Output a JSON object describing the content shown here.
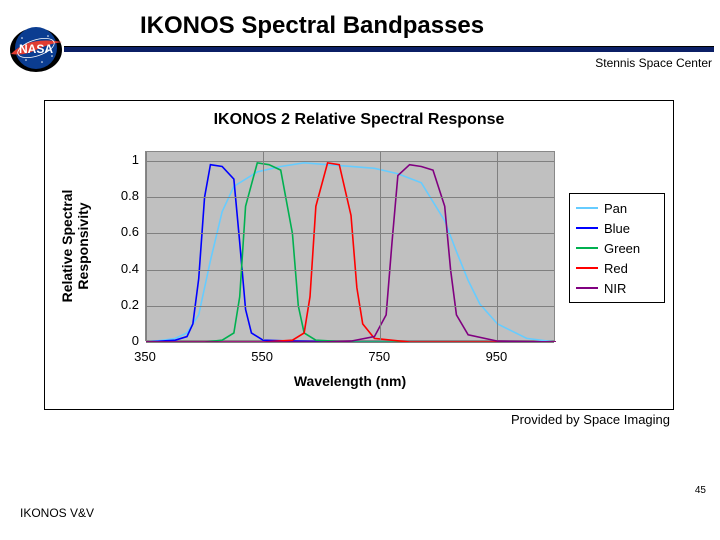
{
  "header": {
    "title": "IKONOS Spectral Bandpasses",
    "subtitle": "Stennis Space Center"
  },
  "logo": {
    "bg_shadow": "#000000",
    "circle_fill": "#0b3d91",
    "red": "#e03c31",
    "white": "#ffffff",
    "text": "NASA"
  },
  "chart": {
    "type": "line",
    "title": "IKONOS 2 Relative Spectral Response",
    "title_fontsize": 16,
    "background_color": "#ffffff",
    "plot_bg": "#c0c0c0",
    "grid_color": "#808080",
    "border_color": "#000000",
    "xlabel": "Wavelength (nm)",
    "ylabel": "Relative Spectral\nResponsivity",
    "label_fontsize": 14,
    "tick_fontsize": 13,
    "xlim": [
      350,
      1050
    ],
    "ylim": [
      0,
      1.05
    ],
    "xticks": [
      350,
      550,
      750,
      950
    ],
    "yticks": [
      0,
      0.2,
      0.4,
      0.6,
      0.8,
      1
    ],
    "line_width": 1.6,
    "legend": {
      "position": "right",
      "items": [
        {
          "label": "Pan",
          "color": "#66ccff"
        },
        {
          "label": "Blue",
          "color": "#0000ff"
        },
        {
          "label": "Green",
          "color": "#00b050"
        },
        {
          "label": "Red",
          "color": "#ff0000"
        },
        {
          "label": "NIR",
          "color": "#800080"
        }
      ]
    },
    "series": {
      "Pan": {
        "color": "#66ccff",
        "x": [
          350,
          380,
          400,
          420,
          440,
          460,
          480,
          500,
          540,
          580,
          620,
          660,
          700,
          740,
          780,
          820,
          860,
          880,
          900,
          920,
          950,
          1000,
          1050
        ],
        "y": [
          0,
          0.01,
          0.02,
          0.05,
          0.15,
          0.45,
          0.72,
          0.86,
          0.94,
          0.97,
          0.99,
          0.98,
          0.97,
          0.96,
          0.93,
          0.88,
          0.67,
          0.5,
          0.34,
          0.21,
          0.1,
          0.02,
          0
        ]
      },
      "Blue": {
        "color": "#0000ff",
        "x": [
          350,
          400,
          420,
          430,
          440,
          450,
          460,
          480,
          500,
          510,
          520,
          530,
          550,
          600,
          700,
          1050
        ],
        "y": [
          0,
          0.01,
          0.03,
          0.1,
          0.35,
          0.8,
          0.98,
          0.97,
          0.9,
          0.55,
          0.18,
          0.05,
          0.01,
          0.005,
          0,
          0
        ]
      },
      "Green": {
        "color": "#00b050",
        "x": [
          350,
          450,
          480,
          500,
          510,
          520,
          540,
          560,
          580,
          600,
          610,
          620,
          640,
          700,
          1050
        ],
        "y": [
          0,
          0,
          0.01,
          0.05,
          0.25,
          0.75,
          0.99,
          0.98,
          0.95,
          0.6,
          0.2,
          0.05,
          0.01,
          0,
          0
        ]
      },
      "Red": {
        "color": "#ff0000",
        "x": [
          350,
          550,
          600,
          620,
          630,
          640,
          660,
          680,
          700,
          710,
          720,
          740,
          800,
          1050
        ],
        "y": [
          0,
          0,
          0.01,
          0.05,
          0.25,
          0.75,
          0.99,
          0.98,
          0.7,
          0.3,
          0.1,
          0.02,
          0,
          0
        ]
      },
      "NIR": {
        "color": "#800080",
        "x": [
          350,
          650,
          700,
          740,
          760,
          770,
          780,
          800,
          820,
          840,
          860,
          870,
          880,
          900,
          950,
          1050
        ],
        "y": [
          0,
          0,
          0.005,
          0.03,
          0.15,
          0.55,
          0.92,
          0.98,
          0.97,
          0.95,
          0.75,
          0.4,
          0.15,
          0.04,
          0.005,
          0
        ]
      }
    }
  },
  "provided": "Provided by Space Imaging",
  "page_number": "45",
  "footer": "IKONOS V&V"
}
